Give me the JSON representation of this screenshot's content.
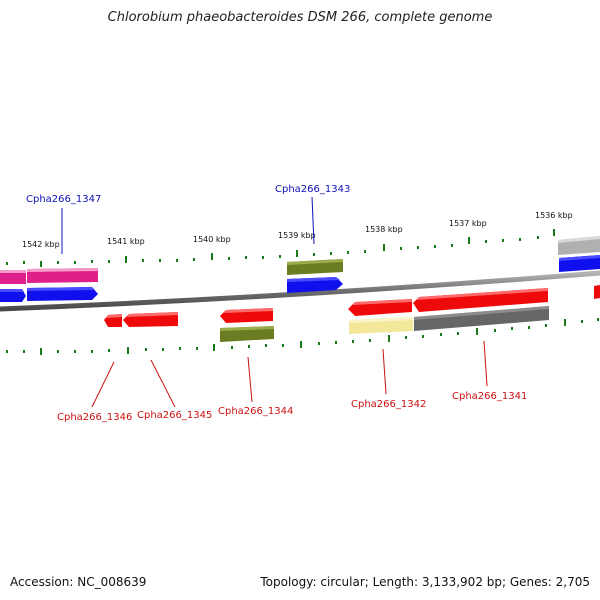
{
  "header": {
    "title": "Chlorobium phaeobacteroides DSM 266, complete genome"
  },
  "footer": {
    "accession": "Accession: NC_008639",
    "topology": "Topology: circular; Length: 3,133,902 bp; Genes: 2,705"
  },
  "colors": {
    "backbone": "#7a7a7a",
    "tick": "#1a7a1a",
    "label_top": "#1010bb",
    "label_bottom": "#cc1111",
    "gene_pink": "#e0208a",
    "gene_blue": "#1010ee",
    "gene_olive": "#6b7d22",
    "gene_red": "#ee0a0a",
    "gene_gray": "#666666",
    "gene_lightgray": "#b0b0b0",
    "gene_yellow": "#f3e89a"
  },
  "scale_labels": [
    "1542 kbp",
    "1541 kbp",
    "1540 kbp",
    "1539 kbp",
    "1538 kbp",
    "1537 kbp",
    "1536 kbp"
  ],
  "top_labels": [
    "Cpha266_1347",
    "Cpha266_1343"
  ],
  "bottom_labels": [
    "Cpha266_1346",
    "Cpha266_1345",
    "Cpha266_1344",
    "Cpha266_1342",
    "Cpha266_1341"
  ]
}
